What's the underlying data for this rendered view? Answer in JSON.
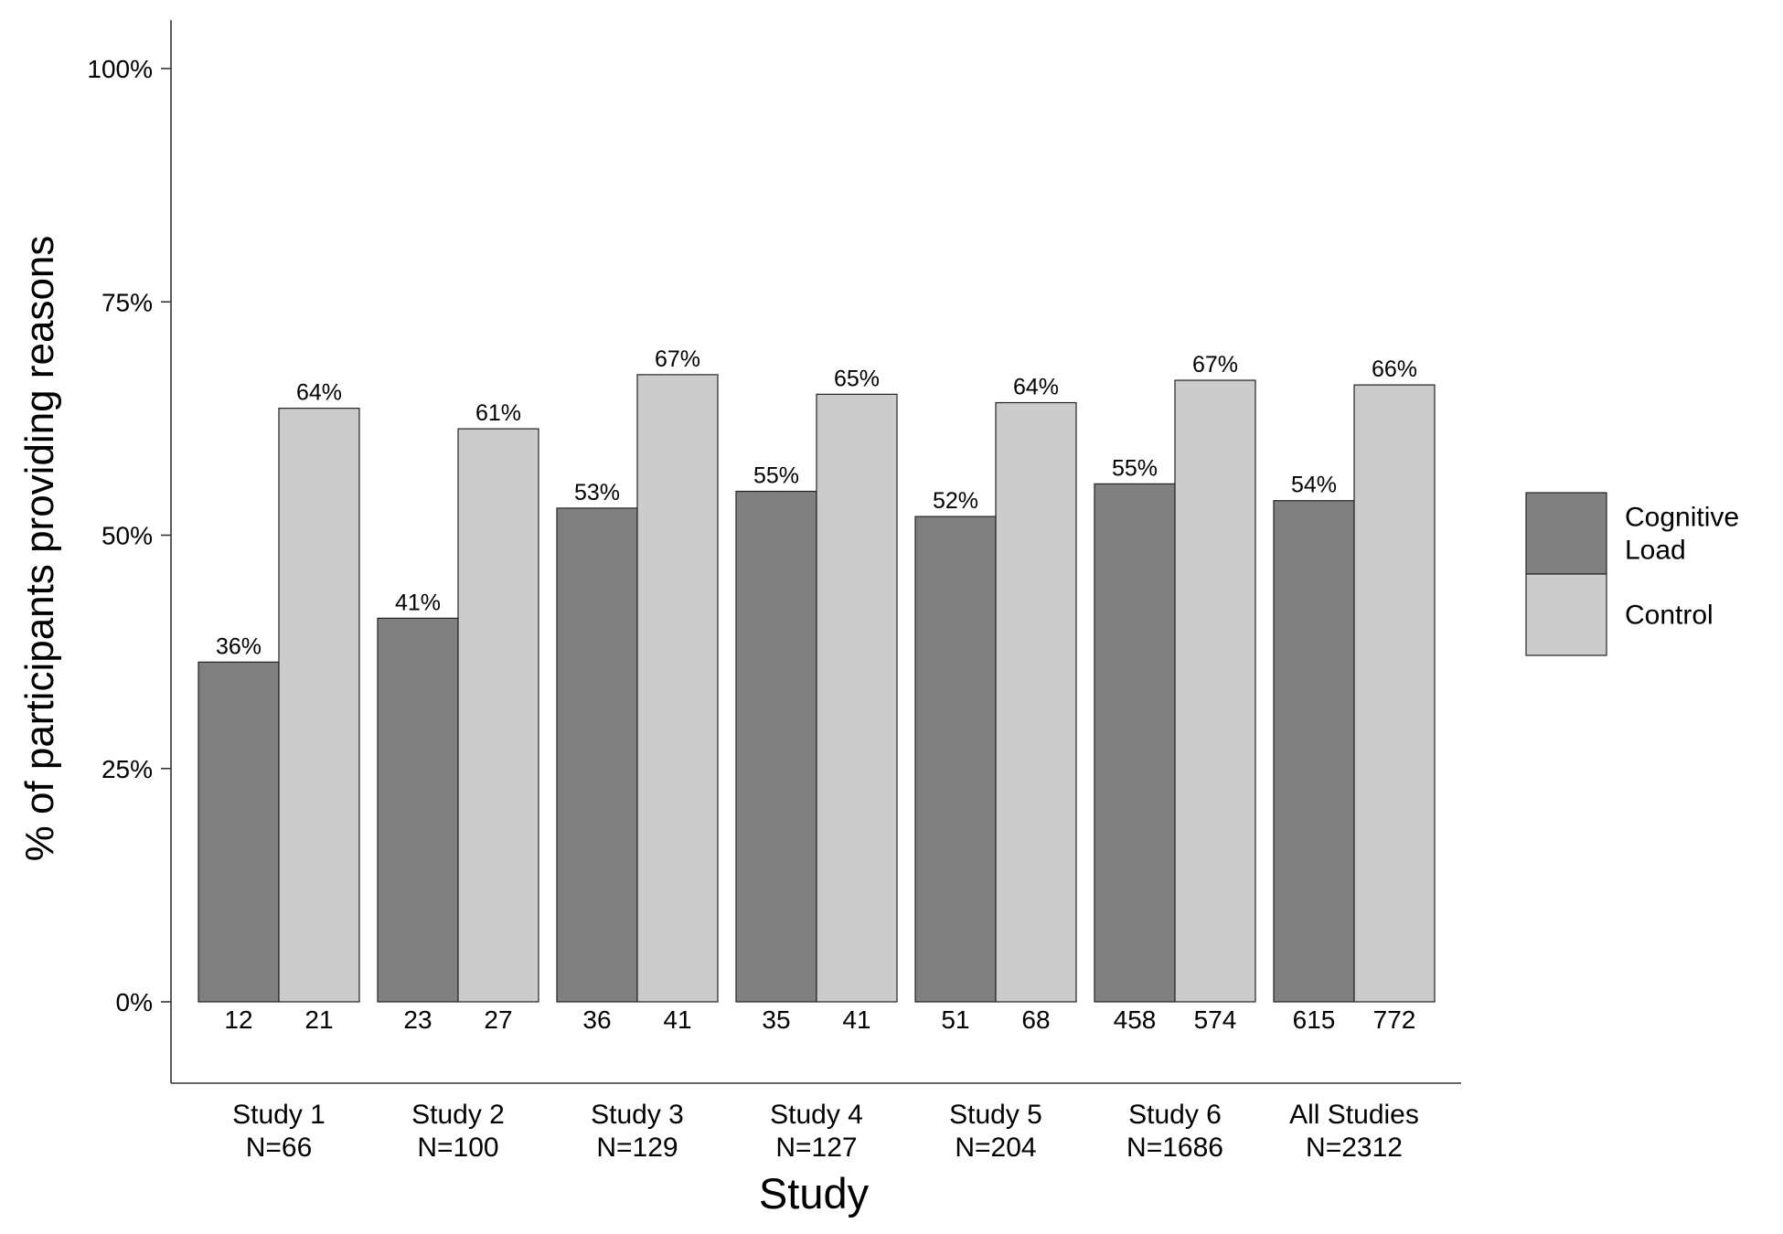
{
  "chart_data": {
    "type": "bar",
    "xlabel": "Study",
    "ylabel": "% of participants providing reasons",
    "ylim": [
      -0.08,
      1.05
    ],
    "yticks": [
      0,
      0.25,
      0.5,
      0.75,
      1.0
    ],
    "ytick_labels": [
      "0%",
      "25%",
      "50%",
      "75%",
      "100%"
    ],
    "grid": false,
    "legend_position": "right",
    "categories": [
      {
        "line1": "Study 1",
        "line2": "N=66"
      },
      {
        "line1": "Study 2",
        "line2": "N=100"
      },
      {
        "line1": "Study 3",
        "line2": "N=129"
      },
      {
        "line1": "Study 4",
        "line2": "N=127"
      },
      {
        "line1": "Study 5",
        "line2": "N=204"
      },
      {
        "line1": "Study 6",
        "line2": "N=1686"
      },
      {
        "line1": "All Studies",
        "line2": "N=2312"
      }
    ],
    "series": [
      {
        "name": "Cognitive Load",
        "legend_lines": [
          "Cognitive",
          "Load"
        ],
        "color": "#808080",
        "values": [
          0.364,
          0.411,
          0.529,
          0.547,
          0.52,
          0.555,
          0.537
        ],
        "labels": [
          "36%",
          "41%",
          "53%",
          "55%",
          "52%",
          "55%",
          "54%"
        ],
        "counts": [
          "12",
          "23",
          "36",
          "35",
          "51",
          "458",
          "615"
        ]
      },
      {
        "name": "Control",
        "legend_lines": [
          "Control"
        ],
        "color": "#cccccc",
        "values": [
          0.636,
          0.614,
          0.672,
          0.651,
          0.642,
          0.666,
          0.661
        ],
        "labels": [
          "64%",
          "61%",
          "67%",
          "65%",
          "64%",
          "67%",
          "66%"
        ],
        "counts": [
          "21",
          "27",
          "41",
          "41",
          "68",
          "574",
          "772"
        ]
      }
    ]
  }
}
